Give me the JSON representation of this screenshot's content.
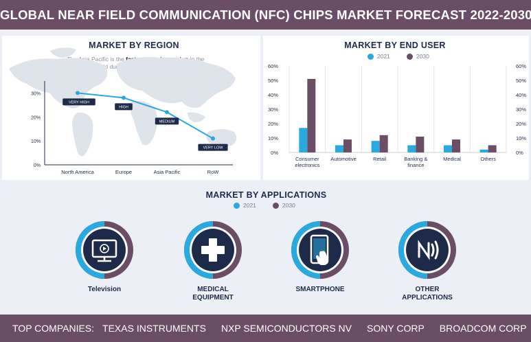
{
  "header": {
    "title": "GLOBAL NEAR FIELD COMMUNICATION (NFC) CHIPS MARKET FORECAST 2022-2030"
  },
  "region": {
    "title": "MARKET BY REGION",
    "note_prefix": "The Asia Pacific is the ",
    "note_bold": "fastest growing region",
    "note_suffix": " in the world during the forecast period."
  },
  "end_user": {
    "title": "MARKET BY END USER",
    "legend": [
      "2021",
      "2030"
    ]
  },
  "applications": {
    "title": "MARKET BY APPLICATIONS",
    "legend": [
      "2021",
      "2030"
    ],
    "items": [
      {
        "label": "Television",
        "icon": "television-icon"
      },
      {
        "label": "MEDICAL\nEQUIPMENT",
        "icon": "medical-cross-icon"
      },
      {
        "label": "SMARTPHONE",
        "icon": "smartphone-icon"
      },
      {
        "label": "OTHER\nAPPLICATIONS",
        "icon": "nfc-icon"
      }
    ]
  },
  "footer": {
    "label": "TOP COMPANIES:",
    "companies": [
      "TEXAS INSTRUMENTS",
      "NXP SEMICONDUCTORS NV",
      "SONY CORP",
      "BROADCOM CORP"
    ]
  },
  "colors": {
    "header": "#6c4d66",
    "series_2021": "#2aa8e0",
    "series_2030": "#6c4d66",
    "navy": "#1e2a4a",
    "line": "#2aa8e0",
    "map": "#d9dde6"
  },
  "chart_data": [
    {
      "type": "line",
      "title": "MARKET BY REGION",
      "categories": [
        "North America",
        "Europe",
        "Asia Pacific",
        "RoW"
      ],
      "values": [
        30,
        28,
        22,
        11
      ],
      "point_labels": [
        "VERY HIGH",
        "HIGH",
        "MEDIUM",
        "VERY LOW"
      ],
      "yticks": [
        "0%",
        "10%",
        "20%",
        "30%"
      ],
      "ylim": [
        0,
        35
      ],
      "xlabel": "",
      "ylabel": ""
    },
    {
      "type": "bar",
      "title": "MARKET BY END USER",
      "categories": [
        "Consumer electronics",
        "Automotive",
        "Retail",
        "Banking & finance",
        "Medical",
        "Others"
      ],
      "series": [
        {
          "name": "2021",
          "values": [
            17,
            5,
            8,
            5,
            5,
            2
          ]
        },
        {
          "name": "2030",
          "values": [
            51,
            9,
            12,
            11,
            9,
            5
          ]
        }
      ],
      "yticks": [
        "0%",
        "10%",
        "20%",
        "30%",
        "40%",
        "50%",
        "60%"
      ],
      "ylim": [
        0,
        60
      ],
      "xlabel": "",
      "ylabel": ""
    }
  ]
}
